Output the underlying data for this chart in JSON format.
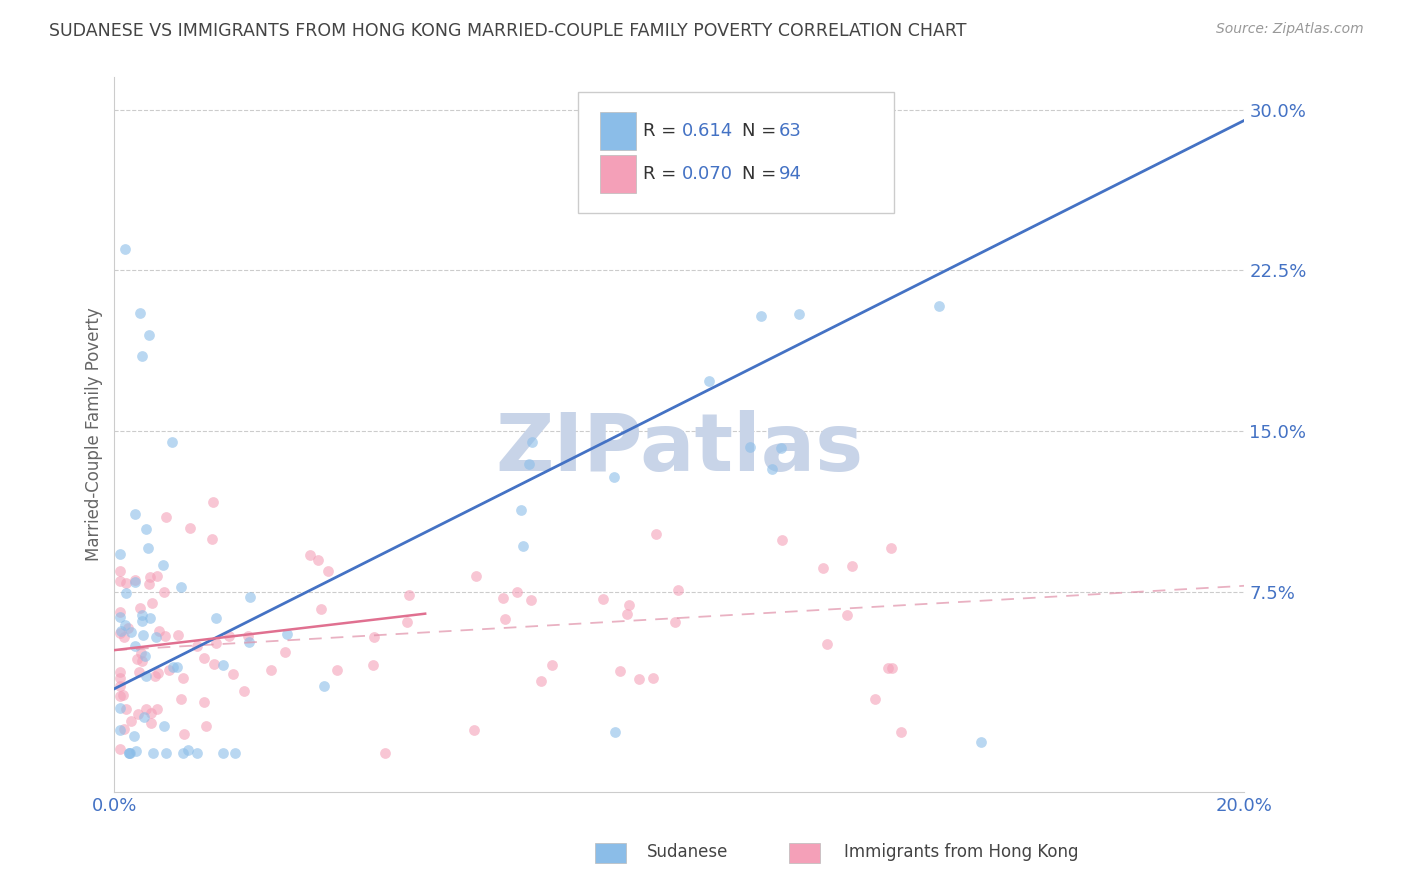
{
  "title": "SUDANESE VS IMMIGRANTS FROM HONG KONG MARRIED-COUPLE FAMILY POVERTY CORRELATION CHART",
  "source": "Source: ZipAtlas.com",
  "ylabel": "Married-Couple Family Poverty",
  "watermark": "ZIPatlas",
  "xmin": 0.0,
  "xmax": 0.2,
  "ymin": -0.018,
  "ymax": 0.315,
  "ytick_vals": [
    0.075,
    0.15,
    0.225,
    0.3
  ],
  "ytick_labels": [
    "7.5%",
    "15.0%",
    "22.5%",
    "30.0%"
  ],
  "xtick_vals": [
    0.0,
    0.2
  ],
  "xtick_labels": [
    "0.0%",
    "20.0%"
  ],
  "sudanese_color": "#8bbde8",
  "hk_color": "#f4a0b8",
  "trend_sudanese_color": "#4472c4",
  "trend_hk_color": "#e07090",
  "trend_hk_dash_color": "#e090a8",
  "bg_color": "#ffffff",
  "grid_color": "#cccccc",
  "title_color": "#444444",
  "axis_label_color": "#666666",
  "tick_color": "#4472c4",
  "watermark_color": "#c8d4e8",
  "bottom_legend": [
    "Sudanese",
    "Immigrants from Hong Kong"
  ],
  "trend_s_x0": 0.0,
  "trend_s_y0": 0.03,
  "trend_s_x1": 0.2,
  "trend_s_y1": 0.295,
  "trend_hk_solid_x0": 0.0,
  "trend_hk_solid_y0": 0.048,
  "trend_hk_solid_x1": 0.055,
  "trend_hk_solid_y1": 0.065,
  "trend_hk_dash_x0": 0.0,
  "trend_hk_dash_y0": 0.048,
  "trend_hk_dash_x1": 0.2,
  "trend_hk_dash_y1": 0.078
}
